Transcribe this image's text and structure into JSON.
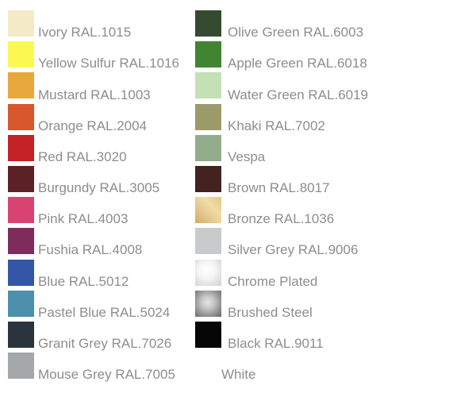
{
  "page": {
    "background": "#ffffff",
    "label_text_color": "#8d8d8d"
  },
  "columns": [
    {
      "name": "left",
      "items": [
        {
          "label": "Ivory RAL.1015",
          "color": "#f3eac7"
        },
        {
          "label": "Yellow Sulfur RAL.1016",
          "color": "#fbf951"
        },
        {
          "label": "Mustard RAL.1003",
          "color": "#e9a83c"
        },
        {
          "label": "Orange RAL.2004",
          "color": "#d8572b"
        },
        {
          "label": "Red RAL.3020",
          "color": "#c42125"
        },
        {
          "label": "Burgundy RAL.3005",
          "color": "#5b2226"
        },
        {
          "label": "Pink RAL.4003",
          "color": "#d94372"
        },
        {
          "label": "Fushia RAL.4008",
          "color": "#7d2c5b"
        },
        {
          "label": "Blue RAL.5012",
          "color": "#3456a6"
        },
        {
          "label": "Pastel Blue RAL.5024",
          "color": "#4c90ac"
        },
        {
          "label": "Granit Grey RAL.7026",
          "color": "#2b343c"
        },
        {
          "label": "Mouse Grey RAL.7005",
          "color": "#a6a7a9"
        }
      ]
    },
    {
      "name": "right",
      "items": [
        {
          "label": "Olive Green RAL.6003",
          "color": "#364a31"
        },
        {
          "label": "Apple Green RAL.6018",
          "color": "#418431"
        },
        {
          "label": "Water Green RAL.6019",
          "color": "#c4e0b5"
        },
        {
          "label": "Khaki RAL.7002",
          "color": "#9a9b68"
        },
        {
          "label": "Vespa",
          "color": "#93ad8c"
        },
        {
          "label": "Brown RAL.8017",
          "color": "#432220"
        },
        {
          "label": "Bronze RAL.1036",
          "gradient": {
            "type": "linear",
            "angle": "45deg",
            "stops": [
              [
                "#d2a96a",
                "0%"
              ],
              [
                "#e9cf97",
                "45%"
              ],
              [
                "#f0dca8",
                "65%"
              ],
              [
                "#e3c386",
                "100%"
              ]
            ]
          }
        },
        {
          "label": "Silver Grey RAL.9006",
          "color": "#c9cacc"
        },
        {
          "label": "Chrome Plated",
          "gradient": {
            "type": "radial",
            "center": "45% 40%",
            "stops": [
              [
                "#ffffff",
                "0%"
              ],
              [
                "#f5f5f5",
                "40%"
              ],
              [
                "#dcdcdc",
                "78%"
              ],
              [
                "#d3d3d3",
                "100%"
              ]
            ]
          }
        },
        {
          "label": "Brushed Steel",
          "gradient": {
            "type": "radial",
            "center": "48% 45%",
            "stops": [
              [
                "#e4e4e4",
                "0%"
              ],
              [
                "#c8c8c8",
                "30%"
              ],
              [
                "#999999",
                "62%"
              ],
              [
                "#717171",
                "92%"
              ],
              [
                "#6b6b6b",
                "100%"
              ]
            ]
          }
        },
        {
          "label": "Black RAL.9011",
          "color": "#060606"
        },
        {
          "label": "White",
          "color": "#ffffff"
        }
      ]
    }
  ]
}
